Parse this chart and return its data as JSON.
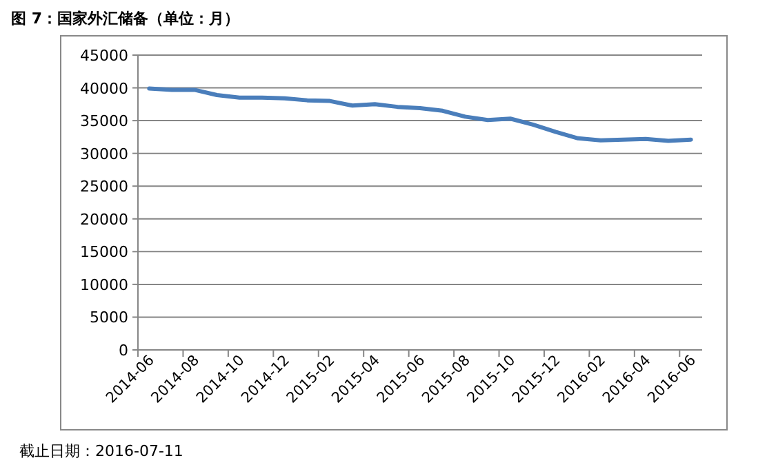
{
  "chart_data": {
    "type": "line",
    "title": "图 7：国家外汇储备（单位：月）",
    "categories": [
      "2014-06",
      null,
      "2014-08",
      null,
      "2014-10",
      null,
      "2014-12",
      null,
      "2015-02",
      null,
      "2015-04",
      null,
      "2015-06",
      null,
      "2015-08",
      null,
      "2015-10",
      null,
      "2015-12",
      null,
      "2016-02",
      null,
      "2016-04",
      null,
      "2016-06"
    ],
    "series": [
      {
        "color": "#4a7ebb",
        "values": [
          39900,
          39700,
          39700,
          38900,
          38500,
          38500,
          38400,
          38100,
          38000,
          37300,
          37500,
          37100,
          36900,
          36500,
          35600,
          35100,
          35300,
          34400,
          33300,
          32300,
          32000,
          32100,
          32200,
          31900,
          32100
        ]
      }
    ],
    "ylim": [
      0,
      45000
    ],
    "yticks": [
      0,
      5000,
      10000,
      15000,
      20000,
      25000,
      30000,
      35000,
      40000,
      45000
    ],
    "grid": "y",
    "annotations": [
      "截止日期：2016-07-11"
    ]
  }
}
